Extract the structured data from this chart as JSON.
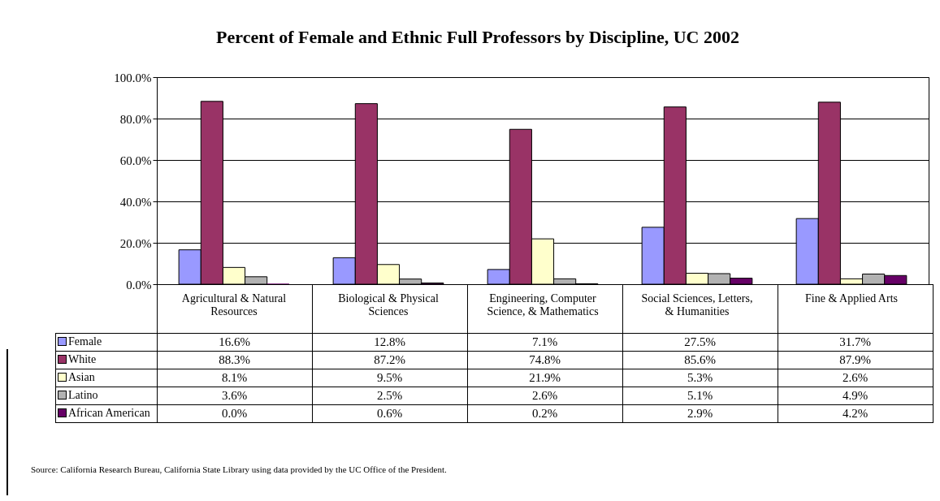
{
  "chart_data": {
    "type": "bar",
    "title": "Percent of Female and Ethnic Full Professors by Discipline, UC 2002",
    "categories": [
      "Agricultural & Natural Resources",
      "Biological & Physical Sciences",
      "Engineering, Computer Science, & Mathematics",
      "Social Sciences, Letters, & Humanities",
      "Fine & Applied Arts"
    ],
    "series": [
      {
        "name": "Female",
        "color": "#9999ff",
        "values": [
          16.6,
          12.8,
          7.1,
          27.5,
          31.7
        ],
        "value_labels": [
          "16.6%",
          "12.8%",
          "7.1%",
          "27.5%",
          "31.7%"
        ]
      },
      {
        "name": "White",
        "color": "#993366",
        "values": [
          88.3,
          87.2,
          74.8,
          85.6,
          87.9
        ],
        "value_labels": [
          "88.3%",
          "87.2%",
          "74.8%",
          "85.6%",
          "87.9%"
        ]
      },
      {
        "name": "Asian",
        "color": "#ffffcc",
        "values": [
          8.1,
          9.5,
          21.9,
          5.3,
          2.6
        ],
        "value_labels": [
          "8.1%",
          "9.5%",
          "21.9%",
          "5.3%",
          "2.6%"
        ]
      },
      {
        "name": "Latino",
        "color": "#b2b2b2",
        "values": [
          3.6,
          2.5,
          2.6,
          5.1,
          4.9
        ],
        "value_labels": [
          "3.6%",
          "2.5%",
          "2.6%",
          "5.1%",
          "4.9%"
        ]
      },
      {
        "name": "African American",
        "color": "#660066",
        "values": [
          0.0,
          0.6,
          0.2,
          2.9,
          4.2
        ],
        "value_labels": [
          "0.0%",
          "0.6%",
          "0.2%",
          "2.9%",
          "4.2%"
        ]
      }
    ],
    "ylim": [
      0,
      100
    ],
    "yticks": [
      {
        "value": 0,
        "label": "0.0%"
      },
      {
        "value": 20,
        "label": "20.0%"
      },
      {
        "value": 40,
        "label": "40.0%"
      },
      {
        "value": 60,
        "label": "60.0%"
      },
      {
        "value": 80,
        "label": "80.0%"
      },
      {
        "value": 100,
        "label": "100.0%"
      }
    ],
    "grid": "y",
    "legend": "bottom left",
    "annotations": [
      "Source:  California Research Bureau, California State Library using data provided by the UC Office of the President."
    ]
  }
}
